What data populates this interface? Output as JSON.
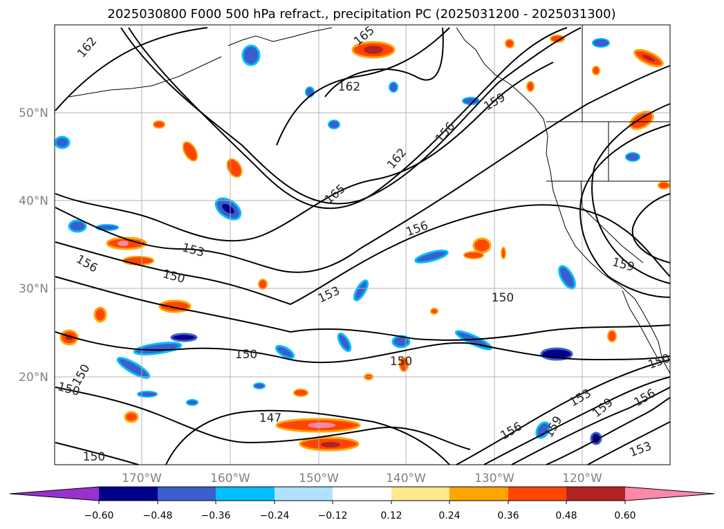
{
  "map": {
    "title": "2025030800 F000 500 hPa refract., precipitation PC (2025031200 - 2025031300)",
    "lat_labels": [
      "50°N",
      "40°N",
      "30°N",
      "20°N"
    ],
    "lon_labels": [
      "170°W",
      "160°W",
      "150°W",
      "140°W",
      "130°W",
      "120°W"
    ],
    "contour_labels": [
      "162",
      "165",
      "162",
      "159",
      "156",
      "162",
      "165",
      "156",
      "153",
      "156",
      "150",
      "153",
      "150",
      "150",
      "150",
      "150",
      "150",
      "147",
      "150",
      "153",
      "159",
      "156",
      "159",
      "153",
      "150",
      "159",
      "156"
    ],
    "colorbar": {
      "tick_labels": [
        "−0.60",
        "−0.48",
        "−0.36",
        "−0.24",
        "−0.12",
        "0.12",
        "0.24",
        "0.36",
        "0.48",
        "0.60"
      ],
      "colors": [
        "#9932cc",
        "#00008b",
        "#3a5fcd",
        "#00bfff",
        "#b0e2ff",
        "#ffffff",
        "#ffe98c",
        "#ffa500",
        "#ff4500",
        "#b22222",
        "#ff88aa"
      ]
    }
  }
}
